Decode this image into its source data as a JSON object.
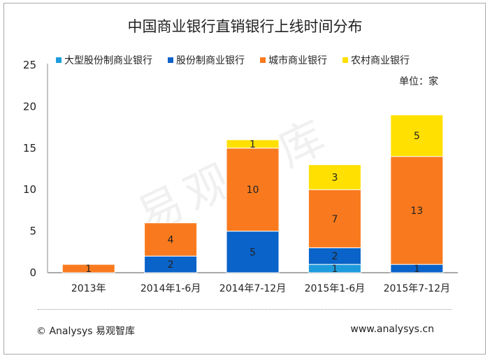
{
  "chart_data": {
    "type": "bar",
    "stacked": true,
    "title": "中国商业银行直销银行上线时间分布",
    "unit_label": "单位：家",
    "categories": [
      "2013年",
      "2014年1-6月",
      "2014年7-12月",
      "2015年1-6月",
      "2015年7-12月"
    ],
    "series": [
      {
        "name": "大型股份制商业银行",
        "color": "#1E9BDC",
        "values": [
          0,
          0,
          0,
          1,
          0
        ]
      },
      {
        "name": "股份制商业银行",
        "color": "#0A63C8",
        "values": [
          0,
          2,
          5,
          2,
          1
        ]
      },
      {
        "name": "城市商业银行",
        "color": "#F97A1E",
        "values": [
          1,
          4,
          10,
          7,
          13
        ]
      },
      {
        "name": "农村商业银行",
        "color": "#FFE000",
        "values": [
          0,
          0,
          1,
          3,
          5
        ]
      }
    ],
    "ylim": [
      0,
      25
    ],
    "yticks": [
      0,
      5,
      10,
      15,
      20,
      25
    ],
    "grid": false,
    "legend": "top"
  },
  "watermark": "易观智库",
  "footer": {
    "left": "© Analysys 易观智库",
    "right": "www.analysys.cn"
  }
}
